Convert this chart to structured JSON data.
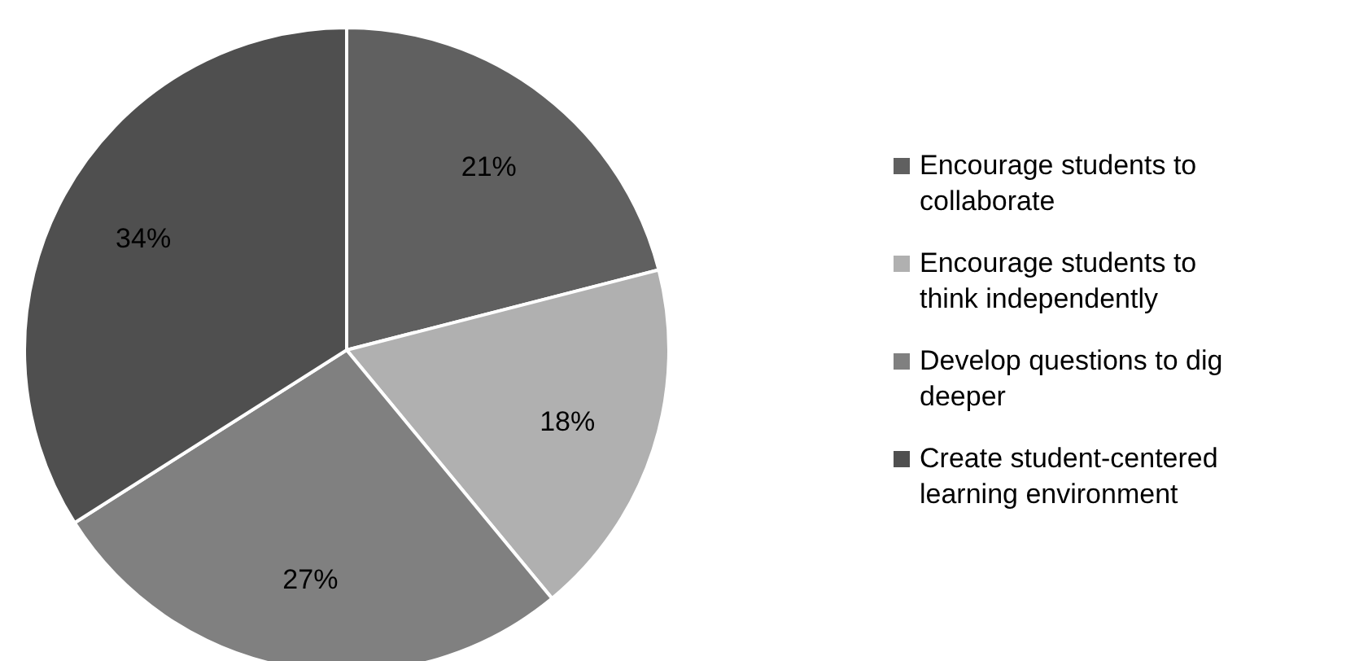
{
  "chart_data": {
    "type": "pie",
    "categories": [
      "Encourage students to collaborate",
      "Encourage students to think independently",
      "Develop questions to dig deeper",
      "Create student-centered learning environment"
    ],
    "values": [
      21,
      18,
      27,
      34
    ],
    "colors": [
      "#606060",
      "#b0b0b0",
      "#808080",
      "#4f4f4f"
    ],
    "value_labels": [
      "21%",
      "18%",
      "27%",
      "34%"
    ],
    "legend": "right"
  }
}
